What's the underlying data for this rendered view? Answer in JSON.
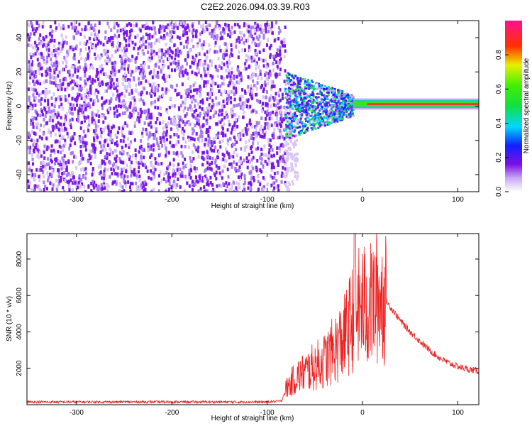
{
  "title": "C2E2.2026.094.03.39.R03",
  "colors": {
    "line": "#ee2222",
    "spectrogram_main": "#7a16e8",
    "spectrogram_light": "#d9c6f4",
    "axis": "#000000"
  },
  "chart_data": [
    {
      "type": "heatmap",
      "xlabel": "Height of straight line (km)",
      "ylabel": "Frequency (Hz)",
      "xlim": [
        -352,
        122
      ],
      "ylim": [
        -50,
        50
      ],
      "xticks": [
        -300,
        -200,
        -100,
        0,
        100
      ],
      "yticks": [
        -40,
        -20,
        0,
        20,
        40
      ],
      "colorbar": {
        "label": "Normalized spectral amplitude",
        "range": [
          0,
          1
        ],
        "ticks": [
          "0.0",
          "0.2",
          "0.4",
          "0.6",
          "0.8"
        ],
        "colormap": "rainbow (magenta-blue-cyan-green-yellow-red-pink)"
      },
      "description_of_regions": [
        {
          "x_range": [
            -352,
            -82
          ],
          "freq_range": [
            -50,
            50
          ],
          "amplitude": 0.1
        },
        {
          "x_range": [
            -82,
            -10
          ],
          "freq_range": [
            -10,
            10
          ],
          "amplitude": 0.4
        },
        {
          "x_range": [
            -10,
            122
          ],
          "freq_range": [
            0,
            3
          ],
          "amplitude": 0.85
        }
      ]
    },
    {
      "type": "line",
      "xlabel": "Height of straight line (km)",
      "ylabel": "SNR (10 * v/v)",
      "xlim": [
        -352,
        122
      ],
      "ylim": [
        0,
        9400
      ],
      "xticks": [
        -300,
        -200,
        -100,
        0,
        100
      ],
      "yticks": [
        2000,
        4000,
        6000,
        8000
      ],
      "series": [
        {
          "x": [
            -352,
            -300,
            -250,
            -200,
            -150,
            -100,
            -85,
            -80,
            -70,
            -60,
            -50,
            -40,
            -30,
            -20,
            -15,
            -10,
            -5,
            0,
            5,
            10,
            15,
            20,
            25,
            30,
            40,
            50,
            60,
            70,
            80,
            90,
            100,
            110,
            122
          ],
          "values": [
            150,
            150,
            150,
            150,
            150,
            150,
            200,
            900,
            1500,
            1800,
            2100,
            2400,
            3000,
            3600,
            4200,
            4800,
            5200,
            5500,
            5300,
            5500,
            5900,
            5900,
            5700,
            5300,
            4600,
            4000,
            3500,
            3000,
            2600,
            2300,
            2100,
            1950,
            1850
          ]
        }
      ]
    }
  ]
}
